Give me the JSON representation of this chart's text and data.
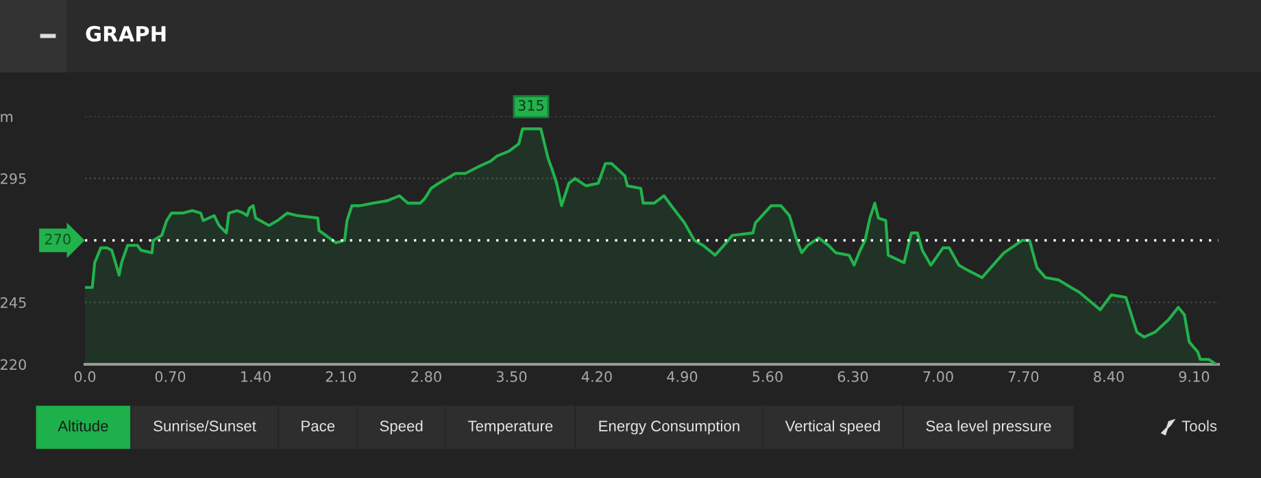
{
  "chart_data": {
    "type": "area",
    "title": "GRAPH",
    "x": [
      0.0,
      0.06,
      0.08,
      0.13,
      0.18,
      0.22,
      0.28,
      0.3,
      0.35,
      0.43,
      0.46,
      0.55,
      0.56,
      0.63,
      0.67,
      0.71,
      0.8,
      0.88,
      0.95,
      0.97,
      1.06,
      1.1,
      1.16,
      1.18,
      1.25,
      1.3,
      1.33,
      1.35,
      1.38,
      1.4,
      1.51,
      1.58,
      1.66,
      1.74,
      1.91,
      1.92,
      2.06,
      2.13,
      2.15,
      2.19,
      2.26,
      2.36,
      2.48,
      2.58,
      2.65,
      2.75,
      2.79,
      2.84,
      2.9,
      2.97,
      3.04,
      3.12,
      3.24,
      3.33,
      3.38,
      3.48,
      3.56,
      3.59,
      3.74,
      3.8,
      3.83,
      3.87,
      3.91,
      3.97,
      4.02,
      4.11,
      4.21,
      4.27,
      4.32,
      4.43,
      4.45,
      4.56,
      4.58,
      4.67,
      4.75,
      4.81,
      4.92,
      5.0,
      5.07,
      5.17,
      5.26,
      5.31,
      5.48,
      5.5,
      5.63,
      5.71,
      5.78,
      5.84,
      5.88,
      5.93,
      6.02,
      6.1,
      6.16,
      6.27,
      6.31,
      6.36,
      6.4,
      6.44,
      6.48,
      6.51,
      6.57,
      6.59,
      6.72,
      6.76,
      6.78,
      6.83,
      6.87,
      6.94,
      7.04,
      7.09,
      7.17,
      7.24,
      7.36,
      7.45,
      7.54,
      7.69,
      7.75,
      7.81,
      7.88,
      7.99,
      8.09,
      8.16,
      8.33,
      8.42,
      8.54,
      8.63,
      8.69,
      8.78,
      8.89,
      8.97,
      9.02,
      9.06,
      9.13,
      9.15,
      9.22,
      9.28
    ],
    "series": [
      {
        "color": "#22b24c",
        "values": [
          251,
          251,
          261,
          267,
          267,
          266,
          256,
          261,
          268,
          268,
          266,
          265,
          270,
          272,
          278,
          281,
          281,
          282,
          281,
          278,
          280,
          276,
          273,
          281,
          282,
          281,
          280,
          283,
          284,
          279,
          276,
          278,
          281,
          280,
          279,
          274,
          269,
          270,
          278,
          284,
          284,
          285,
          286,
          288,
          285,
          285,
          287,
          291,
          293,
          295,
          297,
          297,
          300,
          302,
          304,
          306,
          309,
          315,
          315,
          303,
          299,
          293,
          284,
          293,
          295,
          292,
          293,
          301,
          301,
          296,
          292,
          291,
          285,
          285,
          288,
          284,
          277,
          270,
          268,
          264,
          269,
          272,
          273,
          277,
          284,
          284,
          280,
          270,
          265,
          268,
          271,
          268,
          265,
          264,
          260,
          266,
          270,
          279,
          285,
          279,
          278,
          264,
          261,
          269,
          273,
          273,
          266,
          260,
          267,
          267,
          260,
          258,
          255,
          260,
          265,
          270,
          270,
          259,
          255,
          254,
          251,
          249,
          242,
          248,
          247,
          233,
          231,
          233,
          238,
          243,
          240,
          229,
          225,
          222,
          222,
          220
        ]
      }
    ],
    "xlim": [
      0,
      9.3
    ],
    "xticks": [
      {
        "value": 0,
        "label": "0.0"
      },
      {
        "value": 0.7,
        "label": "0.70"
      },
      {
        "value": 1.4,
        "label": "1.40"
      },
      {
        "value": 2.1,
        "label": "2.10"
      },
      {
        "value": 2.8,
        "label": "2.80"
      },
      {
        "value": 3.5,
        "label": "3.50"
      },
      {
        "value": 4.2,
        "label": "4.20"
      },
      {
        "value": 4.9,
        "label": "4.90"
      },
      {
        "value": 5.6,
        "label": "5.60"
      },
      {
        "value": 6.3,
        "label": "6.30"
      },
      {
        "value": 7.0,
        "label": "7.00"
      },
      {
        "value": 7.7,
        "label": "7.70"
      },
      {
        "value": 8.4,
        "label": "8.40"
      },
      {
        "value": 9.1,
        "label": "9.10"
      }
    ],
    "ylim": [
      220,
      320
    ],
    "yticks": [
      220,
      245,
      295,
      {
        "value": 320,
        "label": "m"
      }
    ],
    "grid": "y",
    "ref_lines": [
      {
        "axis": "y",
        "value": 270,
        "label": "270",
        "color": "#ffffff",
        "line_style": "dotted"
      }
    ],
    "annotations": [
      {
        "text": "315",
        "x": 3.66,
        "y": 315
      },
      "Altitude",
      "Sunrise/Sunset",
      "Pace",
      "Speed",
      "Temperature",
      "Energy Consumption",
      "Vertical speed",
      "Sea level pressure",
      "Tools"
    ]
  }
}
